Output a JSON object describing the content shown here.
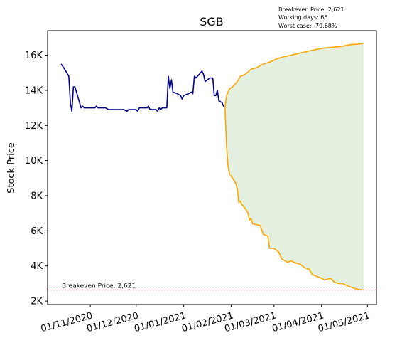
{
  "chart_data": {
    "type": "line",
    "title": "SGB",
    "xlabel": "",
    "ylabel": "Stock Price",
    "x_start": "2020-10-13",
    "x_end": "2021-04-28",
    "ylim": [
      1800,
      17400
    ],
    "y_ticks": [
      {
        "value": 2000,
        "label": "2K"
      },
      {
        "value": 4000,
        "label": "4K"
      },
      {
        "value": 6000,
        "label": "6K"
      },
      {
        "value": 8000,
        "label": "8K"
      },
      {
        "value": 10000,
        "label": "10K"
      },
      {
        "value": 12000,
        "label": "12K"
      },
      {
        "value": 14000,
        "label": "14K"
      },
      {
        "value": 16000,
        "label": "16K"
      }
    ],
    "x_ticks": [
      {
        "date": "2020-11-01",
        "label": "01/11/2020"
      },
      {
        "date": "2020-12-01",
        "label": "01/12/2020"
      },
      {
        "date": "2021-01-01",
        "label": "01/01/2021"
      },
      {
        "date": "2021-02-01",
        "label": "01/02/2021"
      },
      {
        "date": "2021-03-01",
        "label": "01/03/2021"
      },
      {
        "date": "2021-04-01",
        "label": "01/04/2021"
      },
      {
        "date": "2021-05-01",
        "label": "01/05/2021"
      }
    ],
    "grid": false,
    "annotations": {
      "breakeven": "Breakeven Price: 2,621",
      "working_days": "Working days: 66",
      "worst_case": "Worst case: -79.68%"
    },
    "breakeven_value": 2621,
    "breakeven_label": "Breakeven Price: 2,621",
    "colors": {
      "history": "#00008b",
      "projection": "#ffa500",
      "fill": "#e3f0e0",
      "breakeven": "#ff0000"
    },
    "series": [
      {
        "key": "history",
        "values": [
          [
            "2020-10-13",
            15500
          ],
          [
            "2020-10-16",
            15100
          ],
          [
            "2020-10-18",
            14800
          ],
          [
            "2020-10-19",
            13300
          ],
          [
            "2020-10-20",
            12800
          ],
          [
            "2020-10-21",
            14200
          ],
          [
            "2020-10-22",
            14200
          ],
          [
            "2020-10-25",
            13300
          ],
          [
            "2020-10-26",
            13000
          ],
          [
            "2020-10-27",
            13100
          ],
          [
            "2020-10-28",
            13000
          ],
          [
            "2020-11-02",
            13000
          ],
          [
            "2020-11-04",
            13000
          ],
          [
            "2020-11-05",
            13100
          ],
          [
            "2020-11-06",
            13000
          ],
          [
            "2020-11-10",
            13000
          ],
          [
            "2020-11-11",
            13000
          ],
          [
            "2020-11-13",
            12900
          ],
          [
            "2020-11-23",
            12900
          ],
          [
            "2020-11-25",
            12800
          ],
          [
            "2020-11-26",
            12900
          ],
          [
            "2020-11-30",
            12900
          ],
          [
            "2020-12-01",
            12900
          ],
          [
            "2020-12-02",
            12800
          ],
          [
            "2020-12-03",
            13000
          ],
          [
            "2020-12-08",
            13000
          ],
          [
            "2020-12-09",
            13100
          ],
          [
            "2020-12-10",
            12900
          ],
          [
            "2020-12-14",
            12900
          ],
          [
            "2020-12-15",
            12800
          ],
          [
            "2020-12-16",
            13000
          ],
          [
            "2020-12-17",
            12900
          ],
          [
            "2020-12-18",
            13000
          ],
          [
            "2020-12-21",
            13000
          ],
          [
            "2020-12-22",
            14800
          ],
          [
            "2020-12-23",
            14100
          ],
          [
            "2020-12-24",
            14600
          ],
          [
            "2020-12-25",
            13900
          ],
          [
            "2020-12-28",
            13800
          ],
          [
            "2020-12-30",
            13700
          ],
          [
            "2020-12-31",
            13500
          ],
          [
            "2021-01-01",
            13700
          ],
          [
            "2021-01-04",
            13800
          ],
          [
            "2021-01-06",
            13900
          ],
          [
            "2021-01-07",
            13800
          ],
          [
            "2021-01-08",
            14800
          ],
          [
            "2021-01-09",
            14700
          ],
          [
            "2021-01-11",
            14900
          ],
          [
            "2021-01-13",
            15100
          ],
          [
            "2021-01-14",
            14900
          ],
          [
            "2021-01-15",
            14500
          ],
          [
            "2021-01-18",
            14700
          ],
          [
            "2021-01-20",
            14700
          ],
          [
            "2021-01-21",
            13700
          ],
          [
            "2021-01-22",
            13700
          ],
          [
            "2021-01-23",
            14000
          ],
          [
            "2021-01-24",
            13400
          ],
          [
            "2021-01-26",
            13300
          ],
          [
            "2021-01-27",
            13100
          ],
          [
            "2021-01-28",
            13000
          ]
        ]
      },
      {
        "key": "upper",
        "values": [
          [
            "2021-01-28",
            13000
          ],
          [
            "2021-01-29",
            13700
          ],
          [
            "2021-01-31",
            14100
          ],
          [
            "2021-02-02",
            14200
          ],
          [
            "2021-02-05",
            14500
          ],
          [
            "2021-02-07",
            14800
          ],
          [
            "2021-02-10",
            14900
          ],
          [
            "2021-02-14",
            15200
          ],
          [
            "2021-02-18",
            15300
          ],
          [
            "2021-02-22",
            15500
          ],
          [
            "2021-02-26",
            15600
          ],
          [
            "2021-03-03",
            15800
          ],
          [
            "2021-03-07",
            15900
          ],
          [
            "2021-03-12",
            16000
          ],
          [
            "2021-03-17",
            16100
          ],
          [
            "2021-03-22",
            16200
          ],
          [
            "2021-03-27",
            16300
          ],
          [
            "2021-04-02",
            16400
          ],
          [
            "2021-04-08",
            16450
          ],
          [
            "2021-04-14",
            16500
          ],
          [
            "2021-04-20",
            16600
          ],
          [
            "2021-04-28",
            16650
          ]
        ]
      },
      {
        "key": "lower",
        "values": [
          [
            "2021-01-28",
            13000
          ],
          [
            "2021-01-29",
            10800
          ],
          [
            "2021-01-30",
            9700
          ],
          [
            "2021-01-31",
            9200
          ],
          [
            "2021-02-02",
            9000
          ],
          [
            "2021-02-04",
            8700
          ],
          [
            "2021-02-05",
            8400
          ],
          [
            "2021-02-06",
            7600
          ],
          [
            "2021-02-07",
            7700
          ],
          [
            "2021-02-08",
            7500
          ],
          [
            "2021-02-10",
            7300
          ],
          [
            "2021-02-12",
            7000
          ],
          [
            "2021-02-13",
            6600
          ],
          [
            "2021-02-14",
            6700
          ],
          [
            "2021-02-15",
            6400
          ],
          [
            "2021-02-20",
            6300
          ],
          [
            "2021-02-22",
            5800
          ],
          [
            "2021-02-25",
            5700
          ],
          [
            "2021-02-26",
            5000
          ],
          [
            "2021-03-01",
            5000
          ],
          [
            "2021-03-04",
            4800
          ],
          [
            "2021-03-06",
            4400
          ],
          [
            "2021-03-10",
            4200
          ],
          [
            "2021-03-12",
            4300
          ],
          [
            "2021-03-14",
            4200
          ],
          [
            "2021-03-18",
            4100
          ],
          [
            "2021-03-21",
            3900
          ],
          [
            "2021-03-24",
            3800
          ],
          [
            "2021-03-26",
            3500
          ],
          [
            "2021-03-29",
            3400
          ],
          [
            "2021-04-01",
            3300
          ],
          [
            "2021-04-03",
            3200
          ],
          [
            "2021-04-07",
            3300
          ],
          [
            "2021-04-09",
            3100
          ],
          [
            "2021-04-12",
            3000
          ],
          [
            "2021-04-15",
            3000
          ],
          [
            "2021-04-17",
            2900
          ],
          [
            "2021-04-20",
            2800
          ],
          [
            "2021-04-23",
            2700
          ],
          [
            "2021-04-26",
            2650
          ],
          [
            "2021-04-28",
            2650
          ]
        ]
      }
    ]
  }
}
